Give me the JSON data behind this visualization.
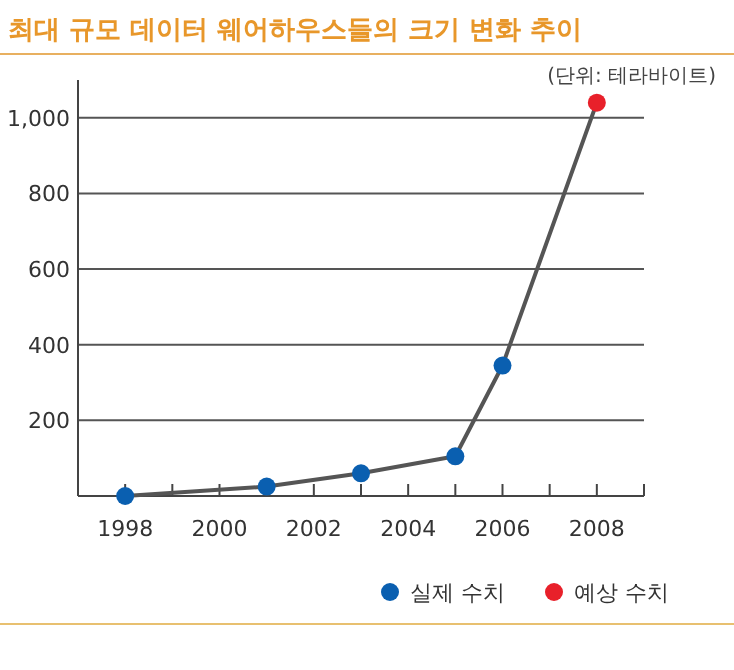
{
  "chart_data": {
    "type": "line",
    "title": "최대 규모 데이터 웨어하우스들의 크기 변화 추이",
    "annotations": [
      "(단위: 테라바이트)"
    ],
    "series": [
      {
        "type": "line",
        "color": "#555555",
        "x": [
          1998,
          2001,
          2003,
          2005,
          2006,
          2008
        ],
        "values": [
          0,
          25,
          60,
          105,
          345,
          1040
        ],
        "marker": "none"
      },
      {
        "type": "scatter",
        "name": "실제 수치",
        "color": "#0a5fb0",
        "x": [
          1998,
          2001,
          2003,
          2005,
          2006
        ],
        "values": [
          0,
          25,
          60,
          105,
          345
        ],
        "marker": "circle"
      },
      {
        "type": "scatter",
        "name": "예상 수치",
        "color": "#e8202a",
        "x": [
          2008
        ],
        "values": [
          1040
        ],
        "marker": "circle"
      }
    ],
    "xlim": [
      1997,
      2009
    ],
    "xticks": [
      1998,
      {
        "value": 1999,
        "label": null
      },
      2000,
      {
        "value": 2001,
        "label": null
      },
      2002,
      {
        "value": 2003,
        "label": null
      },
      2004,
      {
        "value": 2005,
        "label": null
      },
      2006,
      {
        "value": 2007,
        "label": null
      },
      2008,
      {
        "value": 2009,
        "label": null
      }
    ],
    "ylim": [
      0,
      1100
    ],
    "yticks": [
      {
        "value": 200,
        "label": "200"
      },
      {
        "value": 400,
        "label": "400"
      },
      {
        "value": 600,
        "label": "600"
      },
      {
        "value": 800,
        "label": "800"
      },
      {
        "value": 1000,
        "label": "1,000"
      }
    ],
    "grid": "y",
    "legend": "bottom"
  }
}
